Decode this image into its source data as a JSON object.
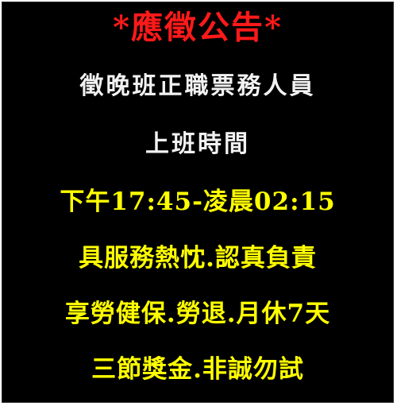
{
  "notice": {
    "title": "*應徵公告*",
    "job_title": "徵晚班正職票務人員",
    "hours_label": "上班時間",
    "hours": "下午17:45-凌晨02:15",
    "requirements": "具服務熱忱.認真負責",
    "benefits": "享勞健保.勞退.月休7天",
    "bonus": "三節獎金.非誠勿試"
  },
  "colors": {
    "background": "#000000",
    "title": "#ff1a1a",
    "white_text": "#f2f2f2",
    "yellow_text": "#ffff00"
  }
}
